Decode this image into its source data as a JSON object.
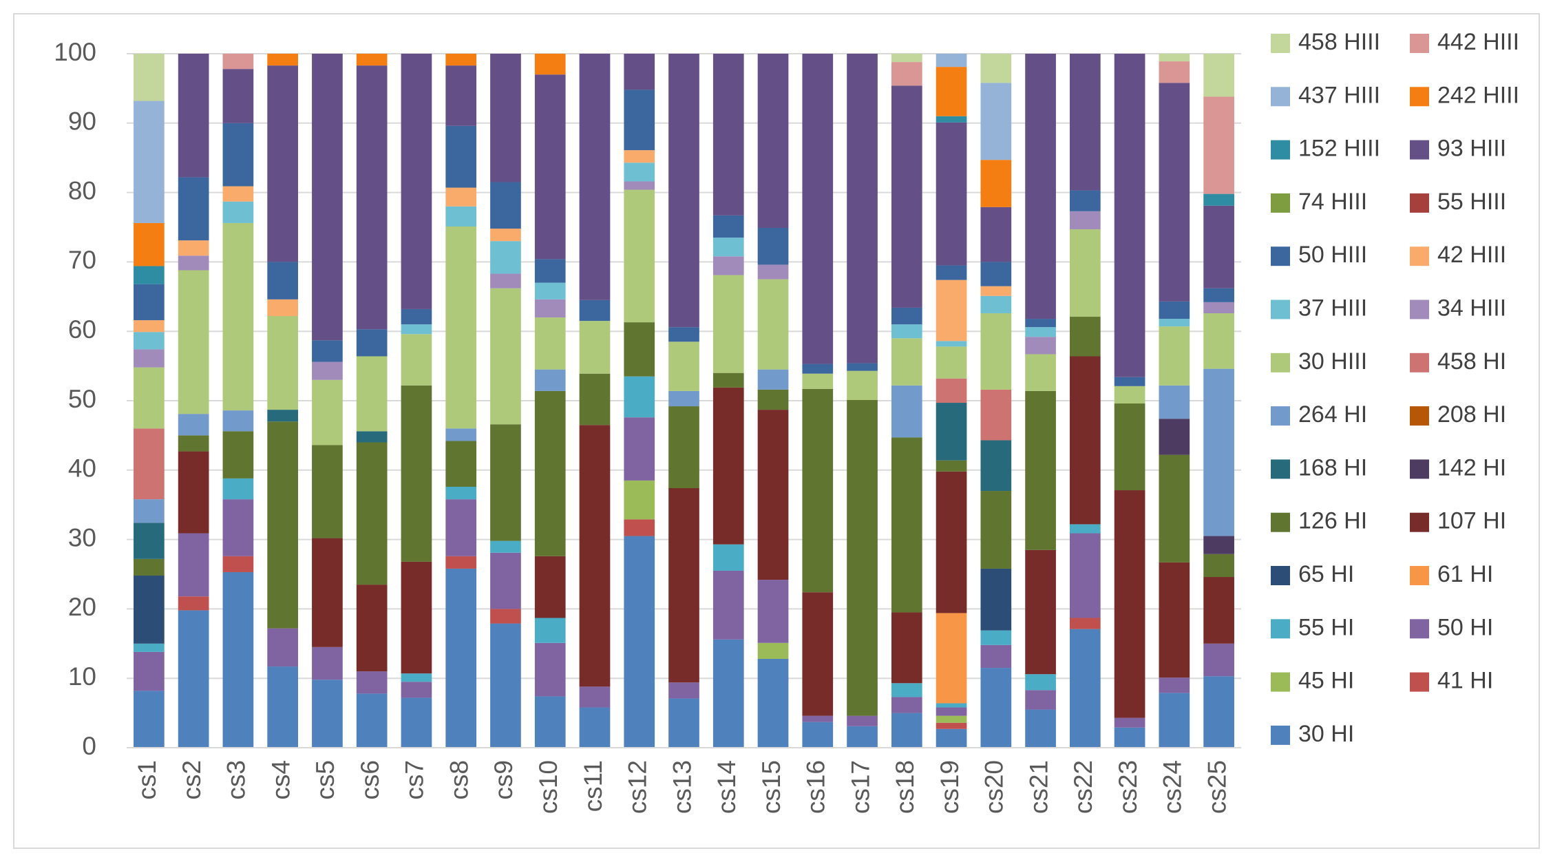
{
  "chart_data": {
    "type": "stacked-bar",
    "categories": [
      "cs1",
      "cs2",
      "cs3",
      "cs4",
      "cs5",
      "cs6",
      "cs7",
      "cs8",
      "cs9",
      "cs10",
      "cs11",
      "cs12",
      "cs13",
      "cs14",
      "cs15",
      "cs16",
      "cs17",
      "cs18",
      "cs19",
      "cs20",
      "cs21",
      "cs22",
      "cs23",
      "cs24",
      "cs25"
    ],
    "ylim": [
      0,
      100
    ],
    "yticks": [
      0,
      10,
      20,
      30,
      40,
      50,
      60,
      70,
      80,
      90,
      100
    ],
    "grid": true,
    "legend": "right",
    "series": [
      {
        "name": "30 HI",
        "color": "#4f81bd",
        "values": [
          8.2,
          19.8,
          25.3,
          11.7,
          9.8,
          7.8,
          7.2,
          25.8,
          17.9,
          7.4,
          5.8,
          30.5,
          7.1,
          15.6,
          12.8,
          3.7,
          3.1,
          5,
          2.7,
          11.5,
          5.5,
          17.1,
          2.9,
          7.9,
          10.3
        ]
      },
      {
        "name": "41 HI",
        "color": "#c0504d",
        "values": [
          0,
          2,
          2.3,
          0,
          0,
          0,
          0,
          1.8,
          2.1,
          0,
          0,
          2.4,
          0,
          0,
          0,
          0,
          0,
          0,
          0.9,
          0,
          0,
          1.6,
          0,
          0,
          0
        ]
      },
      {
        "name": "45 HI",
        "color": "#9bbb59",
        "values": [
          0,
          0,
          0,
          0,
          0,
          0,
          0,
          0,
          0,
          0,
          0,
          5.6,
          0,
          0,
          2.3,
          0,
          0,
          0,
          1,
          0,
          0,
          0,
          0,
          0,
          0
        ]
      },
      {
        "name": "50 HI",
        "color": "#8064a2",
        "values": [
          5.6,
          9.1,
          8.2,
          5.5,
          4.7,
          3.2,
          2.3,
          8.2,
          8.1,
          7.7,
          3,
          9.1,
          2.3,
          9.9,
          9.1,
          0.9,
          1.5,
          2.3,
          1.2,
          3.3,
          2.8,
          12.2,
          1.4,
          2.2,
          4.7
        ]
      },
      {
        "name": "55 HI",
        "color": "#4bacc6",
        "values": [
          1.2,
          0,
          3,
          0,
          0,
          0,
          1.2,
          1.8,
          1.7,
          3.6,
          0,
          5.9,
          0,
          3.8,
          0,
          0,
          0,
          2,
          0.6,
          2.1,
          2.3,
          1.3,
          0,
          0,
          0
        ]
      },
      {
        "name": "61 HI",
        "color": "#f79646",
        "values": [
          0,
          0,
          0,
          0,
          0,
          0,
          0,
          0,
          0,
          0,
          0,
          0,
          0,
          0,
          0,
          0,
          0,
          0,
          13,
          0,
          0,
          0,
          0,
          0,
          0
        ]
      },
      {
        "name": "65 HI",
        "color": "#2c4d75",
        "values": [
          9.8,
          0,
          0,
          0,
          0,
          0,
          0,
          0,
          0,
          0,
          0,
          0,
          0,
          0,
          0,
          0,
          0,
          0,
          0,
          8.9,
          0,
          0,
          0,
          0,
          0
        ]
      },
      {
        "name": "107 HI",
        "color": "#772c2a",
        "values": [
          0,
          11.8,
          0,
          0,
          15.7,
          12.5,
          16.1,
          0,
          0,
          8.9,
          37.7,
          0,
          28,
          22.6,
          24.5,
          17.8,
          0,
          10.2,
          20.4,
          0,
          17.9,
          24.2,
          32.8,
          16.6,
          9.6
        ]
      },
      {
        "name": "126 HI",
        "color": "#5f7530",
        "values": [
          2.4,
          2.3,
          6.8,
          29.8,
          13.4,
          20.5,
          25.4,
          6.6,
          16.8,
          23.8,
          7.4,
          7.8,
          11.8,
          2.1,
          2.9,
          29.3,
          45.5,
          25.2,
          1.6,
          11.2,
          22.9,
          5.7,
          12.5,
          15.5,
          3.3
        ]
      },
      {
        "name": "142 HI",
        "color": "#4d3b62",
        "values": [
          0,
          0,
          0,
          0,
          0,
          0,
          0,
          0,
          0,
          0,
          0,
          0,
          0,
          0,
          0,
          0,
          0,
          0,
          0,
          0,
          0,
          0,
          0,
          5.2,
          2.6
        ]
      },
      {
        "name": "168 HI",
        "color": "#276a7c",
        "values": [
          5.2,
          0,
          0,
          1.7,
          0,
          1.6,
          0,
          0,
          0,
          0,
          0,
          0,
          0,
          0,
          0,
          0,
          0,
          0,
          8.3,
          7.3,
          0,
          0,
          0,
          0,
          0
        ]
      },
      {
        "name": "208 HI",
        "color": "#b65708",
        "values": [
          0,
          0,
          0,
          0,
          0,
          0,
          0,
          0,
          0,
          0,
          0,
          0,
          0,
          0,
          0,
          0,
          0,
          0,
          0,
          0,
          0,
          0,
          0,
          0,
          0
        ]
      },
      {
        "name": "264 HI",
        "color": "#729aca",
        "values": [
          3.4,
          3.1,
          3,
          0,
          0,
          0,
          0,
          1.8,
          0,
          3.1,
          0,
          0,
          2.2,
          0,
          2.9,
          0,
          0,
          7.5,
          0,
          0,
          0,
          0,
          0,
          4.8,
          24.1
        ]
      },
      {
        "name": "458 HI",
        "color": "#cd7371",
        "values": [
          10.2,
          0,
          0,
          0,
          0,
          0,
          0,
          0,
          0,
          0,
          0,
          0,
          0,
          0,
          0,
          0,
          0,
          0,
          3.5,
          7.3,
          0,
          0,
          0,
          0,
          0
        ]
      },
      {
        "name": "30 HIII",
        "color": "#afc97a",
        "values": [
          8.8,
          20.7,
          27,
          13.5,
          9.4,
          10.8,
          7.4,
          29.1,
          19.6,
          7.5,
          7.6,
          19.1,
          7.1,
          14.1,
          13,
          2.2,
          4.2,
          6.8,
          4.6,
          11,
          5.3,
          12.6,
          2.5,
          8.5,
          8
        ]
      },
      {
        "name": "34 HIII",
        "color": "#a08bbb",
        "values": [
          2.6,
          2.1,
          0,
          0,
          2.6,
          0,
          0,
          0,
          2.1,
          2.6,
          0,
          1.2,
          0,
          2.7,
          2.1,
          0,
          0,
          0,
          0,
          0,
          2.5,
          2.6,
          0,
          0,
          1.6
        ]
      },
      {
        "name": "37 HIII",
        "color": "#6fbfd3",
        "values": [
          2.5,
          0,
          3.1,
          0,
          0,
          0,
          1.4,
          2.9,
          4.7,
          2.4,
          0,
          2.7,
          0,
          2.7,
          0,
          0,
          0,
          2,
          0.8,
          2.5,
          1.4,
          0,
          0,
          1.1,
          0
        ]
      },
      {
        "name": "42 HIII",
        "color": "#f9ab6b",
        "values": [
          1.7,
          2.2,
          2.2,
          2.4,
          0,
          0,
          0,
          2.7,
          1.8,
          0,
          0,
          1.8,
          0,
          0,
          0,
          0,
          0,
          0,
          8.8,
          1.4,
          0,
          0,
          0,
          0,
          0
        ]
      },
      {
        "name": "50 HIII",
        "color": "#3b679e",
        "values": [
          5.2,
          9.1,
          9.1,
          5.4,
          3.1,
          3.9,
          2.2,
          8.9,
          6.7,
          3.4,
          3,
          8.7,
          2.1,
          3.2,
          5.3,
          1.4,
          1.1,
          2.4,
          2.1,
          3.5,
          1.2,
          3,
          1.3,
          2.5,
          2
        ]
      },
      {
        "name": "55 HIII",
        "color": "#a5403d",
        "values": [
          0,
          0,
          0,
          0,
          0,
          0,
          0,
          0,
          0,
          0,
          0,
          0,
          0,
          0,
          0,
          0,
          0,
          0,
          0,
          0,
          0,
          0,
          0,
          0,
          0
        ]
      },
      {
        "name": "74 HIII",
        "color": "#7e9c40",
        "values": [
          0,
          0,
          0,
          0,
          0,
          0,
          0,
          0,
          0,
          0,
          0,
          0,
          0,
          0,
          0,
          0,
          0,
          0,
          0,
          0,
          0,
          0,
          0,
          0,
          0
        ]
      },
      {
        "name": "93 HIII",
        "color": "#644f86",
        "values": [
          0,
          17.8,
          7.8,
          28.3,
          41.3,
          38,
          36.8,
          8.7,
          18.5,
          26.6,
          35.5,
          5.2,
          39.4,
          23.3,
          25.1,
          44.7,
          44.6,
          32,
          20.6,
          7.9,
          38.2,
          19.7,
          46.6,
          31.5,
          11.9
        ]
      },
      {
        "name": "152 HIII",
        "color": "#2e8ca3",
        "values": [
          2.6,
          0,
          0,
          0,
          0,
          0,
          0,
          0,
          0,
          0,
          0,
          0,
          0,
          0,
          0,
          0,
          0,
          0,
          0.9,
          0,
          0,
          0,
          0,
          0,
          1.7
        ]
      },
      {
        "name": "242 HIII",
        "color": "#f57e12",
        "values": [
          6.2,
          0,
          0,
          1.7,
          0,
          1.7,
          0,
          1.7,
          0,
          3,
          0,
          0,
          0,
          0,
          0,
          0,
          0,
          0,
          7.1,
          6.8,
          0,
          0,
          0,
          0,
          0
        ]
      },
      {
        "name": "437 HIII",
        "color": "#95b3d7",
        "values": [
          17.6,
          0,
          0,
          0,
          0,
          0,
          0,
          0,
          0,
          0,
          0,
          0,
          0,
          0,
          0,
          0,
          0,
          0,
          1.9,
          11.1,
          0,
          0,
          0,
          0,
          0
        ]
      },
      {
        "name": "442 HIII",
        "color": "#d99694",
        "values": [
          0,
          0,
          2.2,
          0,
          0,
          0,
          0,
          0,
          0,
          0,
          0,
          0,
          0,
          0,
          0,
          0,
          0,
          3.4,
          0,
          0,
          0,
          0,
          0,
          3.1,
          14
        ]
      },
      {
        "name": "458 HIII",
        "color": "#c3d69b",
        "values": [
          6.8,
          0,
          0,
          0,
          0,
          0,
          0,
          0,
          0,
          0,
          0,
          0,
          0,
          0,
          0,
          0,
          0,
          1.2,
          0,
          4.2,
          0,
          0,
          0,
          1.1,
          6.2
        ]
      }
    ]
  }
}
